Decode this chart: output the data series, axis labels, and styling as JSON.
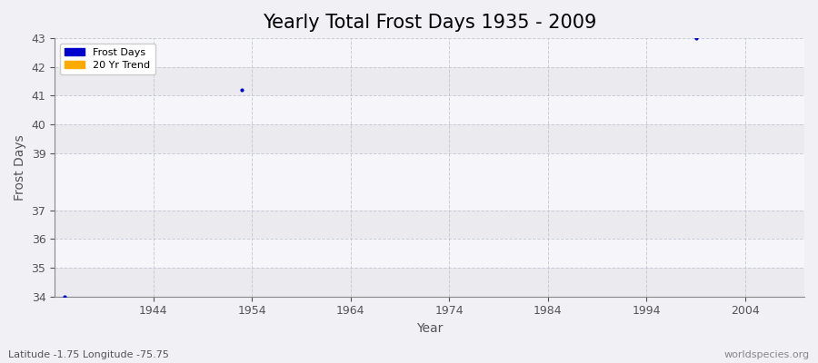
{
  "title": "Yearly Total Frost Days 1935 - 2009",
  "xlabel": "Year",
  "ylabel": "Frost Days",
  "xlim": [
    1934,
    2010
  ],
  "ylim": [
    34,
    43
  ],
  "yticks": [
    34,
    35,
    36,
    37,
    39,
    40,
    41,
    42,
    43
  ],
  "xticks": [
    1944,
    1954,
    1964,
    1974,
    1984,
    1994,
    2004
  ],
  "data_points": [
    {
      "year": 1935,
      "value": 34
    },
    {
      "year": 1953,
      "value": 41.2
    },
    {
      "year": 1999,
      "value": 43
    }
  ],
  "point_color": "#0000cc",
  "point_marker": "o",
  "point_size": 4,
  "bg_color": "#f0f0f5",
  "plot_bg_color": "#f0f0f5",
  "band_colors": [
    "#eaeaef",
    "#f5f5fa"
  ],
  "grid_color": "#c0c4d0",
  "legend_labels": [
    "Frost Days",
    "20 Yr Trend"
  ],
  "legend_colors": [
    "#0000cc",
    "#ffaa00"
  ],
  "subtitle_left": "Latitude -1.75 Longitude -75.75",
  "subtitle_right": "worldspecies.org",
  "title_fontsize": 15,
  "axis_label_fontsize": 10,
  "tick_fontsize": 9,
  "tick_color": "#555555"
}
